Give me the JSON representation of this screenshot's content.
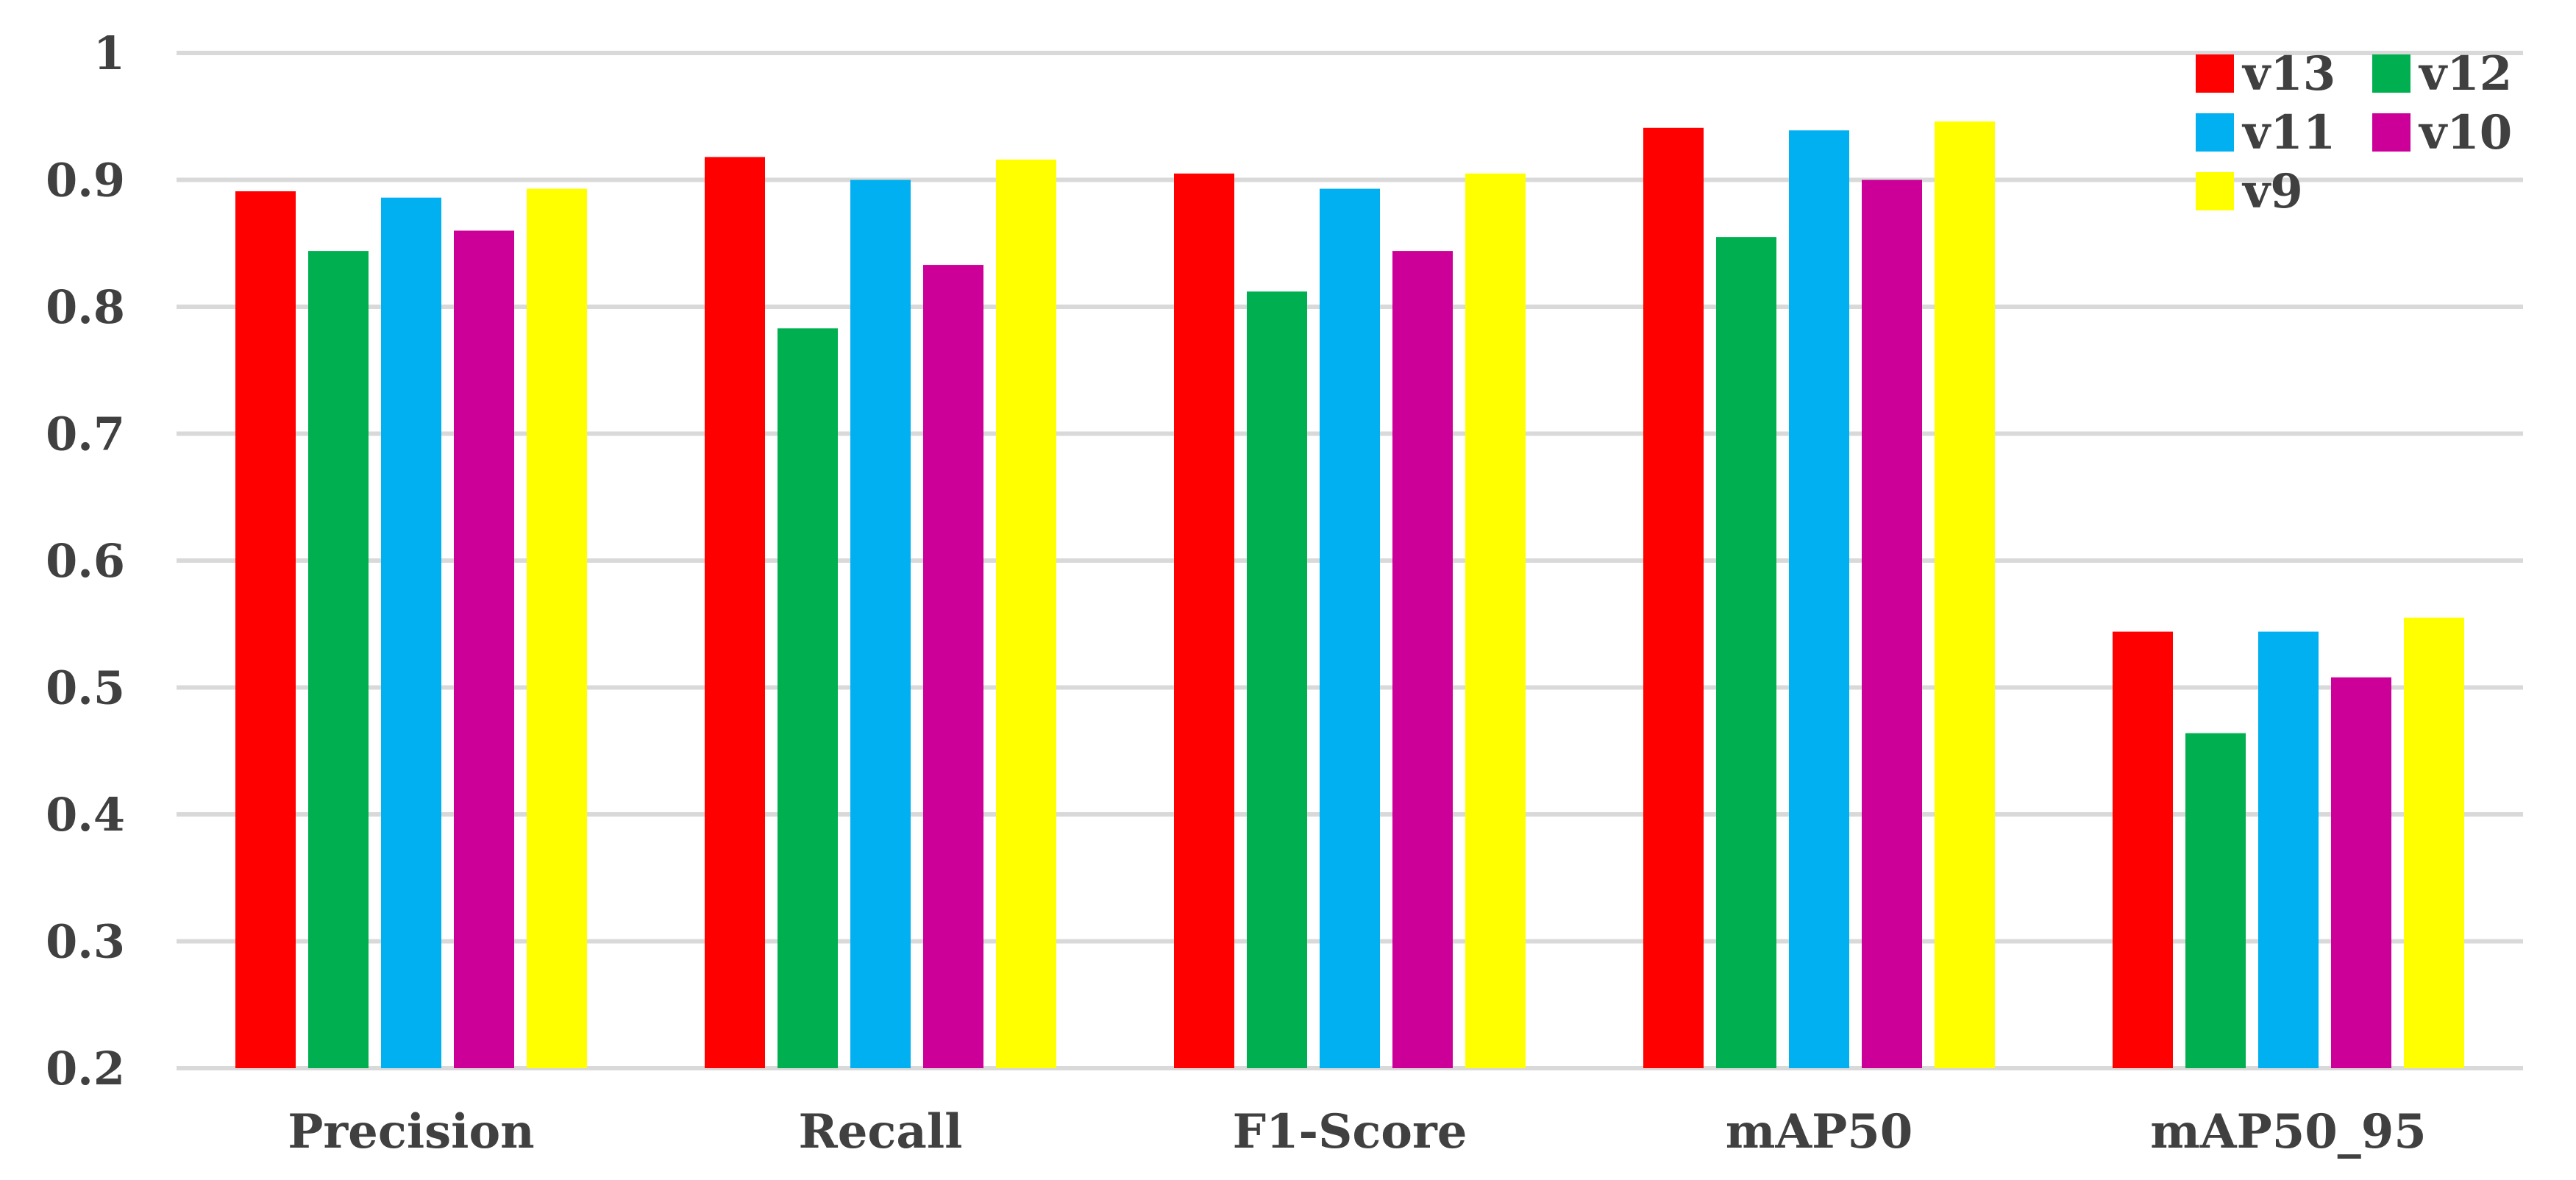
{
  "chart_data": {
    "type": "bar",
    "title": "",
    "xlabel": "",
    "ylabel": "",
    "categories": [
      "Precision",
      "Recall",
      "F1-Score",
      "mAP50",
      "mAP50_95"
    ],
    "ylim": [
      0.2,
      1
    ],
    "yticks": [
      0.2,
      0.3,
      0.4,
      0.5,
      0.6,
      0.7,
      0.8,
      0.9,
      1
    ],
    "ytick_labels": [
      "0.2",
      "0.3",
      "0.4",
      "0.5",
      "0.6",
      "0.7",
      "0.8",
      "0.9",
      "1"
    ],
    "grid": true,
    "legend_position": "top-right",
    "series": [
      {
        "name": "v13",
        "color": "#ff0000",
        "values": [
          0.891,
          0.918,
          0.905,
          0.941,
          0.544
        ]
      },
      {
        "name": "v12",
        "color": "#00b050",
        "values": [
          0.844,
          0.783,
          0.812,
          0.855,
          0.464
        ]
      },
      {
        "name": "v11",
        "color": "#00b0f0",
        "values": [
          0.886,
          0.9,
          0.893,
          0.939,
          0.544
        ]
      },
      {
        "name": "v10",
        "color": "#cc0099",
        "values": [
          0.86,
          0.833,
          0.844,
          0.9,
          0.508
        ]
      },
      {
        "name": "v9",
        "color": "#ffff00",
        "values": [
          0.893,
          0.916,
          0.905,
          0.946,
          0.555
        ]
      }
    ]
  }
}
